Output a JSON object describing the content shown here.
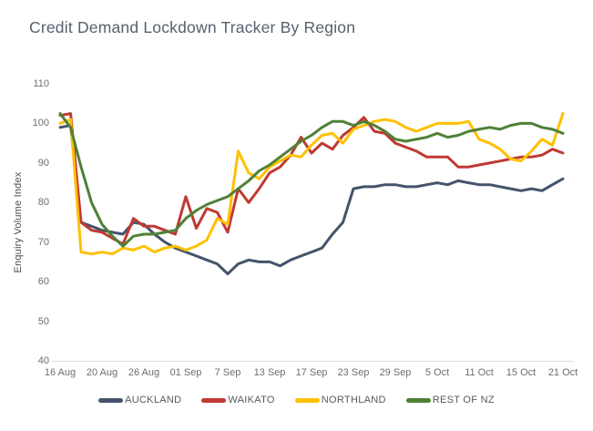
{
  "chart_data": {
    "type": "line",
    "title": "Credit Demand Lockdown Tracker By Region",
    "ylabel": "Enquiry Volume Index",
    "ylim": [
      40,
      110
    ],
    "y_ticks": [
      40,
      50,
      60,
      70,
      80,
      90,
      100,
      110
    ],
    "grid": false,
    "legend_position": "bottom",
    "x_note": "business days",
    "x": [
      "16 Aug",
      "17 Aug",
      "18 Aug",
      "19 Aug",
      "20 Aug",
      "23 Aug",
      "24 Aug",
      "25 Aug",
      "26 Aug",
      "27 Aug",
      "30 Aug",
      "31 Aug",
      "01 Sep",
      "02 Sep",
      "03 Sep",
      "06 Sep",
      "07 Sep",
      "08 Sep",
      "09 Sep",
      "10 Sep",
      "13 Sep",
      "14 Sep",
      "15 Sep",
      "16 Sep",
      "17 Sep",
      "20 Sep",
      "21 Sep",
      "22 Sep",
      "23 Sep",
      "24 Sep",
      "27 Sep",
      "28 Sep",
      "29 Sep",
      "30 Sep",
      "01 Oct",
      "04 Oct",
      "05 Oct",
      "06 Oct",
      "07 Oct",
      "08 Oct",
      "11 Oct",
      "12 Oct",
      "13 Oct",
      "14 Oct",
      "15 Oct",
      "18 Oct",
      "19 Oct",
      "20 Oct",
      "21 Oct"
    ],
    "x_tick_labels": [
      "16 Aug",
      "20 Aug",
      "26 Aug",
      "01 Sep",
      "7 Sep",
      "13 Sep",
      "17 Sep",
      "23 Sep",
      "29 Sep",
      "5 Oct",
      "11 Oct",
      "15 Oct",
      "21 Oct"
    ],
    "x_tick_positions": [
      0,
      4,
      8,
      12,
      16,
      20,
      24,
      28,
      32,
      36,
      40,
      44,
      48
    ],
    "series": [
      {
        "name": "AUCKLAND",
        "color": "#44546A",
        "values": [
          99,
          99.5,
          75,
          74,
          73,
          72.5,
          72,
          75,
          74.5,
          72,
          70,
          68.5,
          67.5,
          66.5,
          65.5,
          64.5,
          62,
          64.5,
          65.5,
          65,
          65,
          64,
          65.5,
          66.5,
          67.5,
          68.5,
          72,
          75,
          83.5,
          84,
          84,
          84.5,
          84.5,
          84,
          84,
          84.5,
          85,
          84.5,
          85.5,
          85,
          84.5,
          84.5,
          84,
          83.5,
          83,
          83.5,
          83,
          84.5,
          86
        ]
      },
      {
        "name": "WAIKATO",
        "color": "#BF3A33",
        "values": [
          102,
          102.5,
          75,
          73,
          72.5,
          71,
          69.5,
          76,
          74,
          74,
          73,
          72,
          81.5,
          73.5,
          78.5,
          77.5,
          72.5,
          83.5,
          80,
          83.5,
          87.5,
          89,
          92,
          96.5,
          92.5,
          95,
          93.5,
          97,
          99,
          101.5,
          98,
          97.5,
          95,
          94,
          93,
          91.5,
          91.5,
          91.5,
          89,
          89,
          89.5,
          90,
          90.5,
          91,
          91.5,
          91.5,
          92,
          93.5,
          92.5
        ]
      },
      {
        "name": "NORTHLAND",
        "color": "#FFC000",
        "values": [
          100,
          101,
          67.5,
          67,
          67.5,
          67,
          68.5,
          68,
          69,
          67.5,
          68.5,
          69,
          68,
          69,
          70.5,
          76,
          74.5,
          93,
          87.5,
          86,
          89,
          90.5,
          92,
          91.5,
          94.5,
          97,
          97.5,
          95,
          98.5,
          99.5,
          100.5,
          101,
          100.5,
          99,
          98,
          99,
          100,
          100,
          100,
          100.5,
          96,
          95,
          93.5,
          91,
          90.5,
          93,
          96,
          94.5,
          102.5
        ]
      },
      {
        "name": "REST OF NZ",
        "color": "#4F8136",
        "values": [
          102.5,
          99,
          89,
          80,
          74.5,
          71.5,
          69,
          71.5,
          72,
          72,
          72.5,
          73,
          76,
          78,
          79.5,
          80.5,
          81.5,
          83.5,
          85.5,
          88,
          89.5,
          91.5,
          93.5,
          95.5,
          97,
          99,
          100.5,
          100.5,
          99.5,
          100.5,
          99.5,
          98,
          96,
          95.5,
          96,
          96.5,
          97.5,
          96.5,
          97,
          98,
          98.5,
          99,
          98.5,
          99.5,
          100,
          100,
          99,
          98.5,
          97.5
        ]
      }
    ],
    "axis_line_color": "#d9d9d9"
  }
}
